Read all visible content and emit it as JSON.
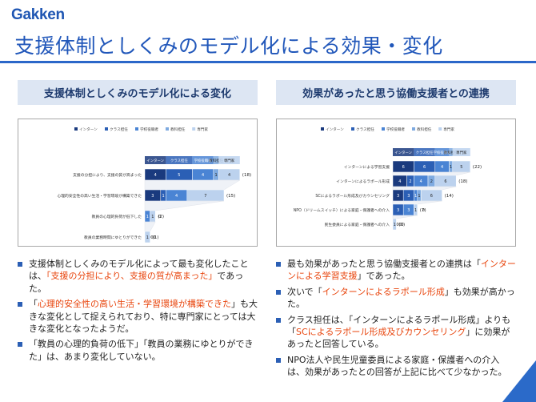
{
  "logo": "Gakken",
  "title": "支援体制としくみのモデル化による効果・変化",
  "colors": {
    "intern": "#1a3a7e",
    "class": "#2b5fb5",
    "admin": "#4a84d4",
    "subject": "#7eaae0",
    "expert": "#bcd2ee",
    "highlight": "#e8450d",
    "accent": "#2b6ac9"
  },
  "legend": [
    "インターン",
    "クラス担任",
    "学校役職者",
    "教科担任",
    "専門家"
  ],
  "left": {
    "header": "支援体制としくみのモデル化による変化",
    "chart_data": {
      "type": "bar",
      "stacked": true,
      "orientation": "horizontal",
      "categories": [
        "支援の分担により、支援の質が高まった",
        "心理的安全性の高い生活・学習環境が構築できた",
        "教員の心理的負荷が低下した",
        "教員の業務時間にゆとりができた"
      ],
      "series": [
        {
          "name": "インターン",
          "values": [
            4,
            3,
            0,
            0
          ]
        },
        {
          "name": "クラス担任",
          "values": [
            5,
            1,
            0,
            0
          ]
        },
        {
          "name": "学校役職者",
          "values": [
            4,
            4,
            1,
            0
          ]
        },
        {
          "name": "教科担任",
          "values": [
            1,
            0,
            0,
            0
          ]
        },
        {
          "name": "専門家",
          "values": [
            4,
            7,
            1,
            1
          ]
        }
      ],
      "totals": [
        "(18)",
        "(15)",
        "(2)",
        "(1)"
      ],
      "value_labels": [
        [
          "4",
          "5",
          "4",
          "1",
          "4"
        ],
        [
          "3",
          "1",
          "4",
          "",
          "7"
        ],
        [
          "0",
          "0",
          "1",
          "0",
          "1"
        ],
        [
          "0",
          "0",
          "0",
          "0",
          "1"
        ]
      ]
    },
    "bullets": [
      [
        {
          "t": "支援体制としくみのモデル化によって最も変化したことは、",
          "h": false
        },
        {
          "t": "「支援の分担により、支援の質が高まった」",
          "h": true
        },
        {
          "t": "であった。",
          "h": false
        }
      ],
      [
        {
          "t": "「",
          "h": false
        },
        {
          "t": "心理的安全性の高い生活・学習環境が構築できた",
          "h": true
        },
        {
          "t": "」も大きな変化として捉えられており、特に専門家にとっては大きな変化となったようだ。",
          "h": false
        }
      ],
      [
        {
          "t": "「教員の心理的負荷の低下」「教員の業務にゆとりができた」は、あまり変化していない。",
          "h": false
        }
      ]
    ]
  },
  "right": {
    "header": "効果があったと思う協働支援者との連携",
    "chart_data": {
      "type": "bar",
      "stacked": true,
      "orientation": "horizontal",
      "categories": [
        "インターンによる学習支援",
        "インターンによるラポール形成",
        "SCによるラポール形成及びカウンセリング",
        "NPO（ドリームスイッチ）による家庭・保護者への介入",
        "民生委員による家庭・保護者への介入"
      ],
      "series": [
        {
          "name": "インターン",
          "values": [
            6,
            4,
            3,
            0,
            0
          ]
        },
        {
          "name": "クラス担任",
          "values": [
            6,
            2,
            3,
            3,
            0
          ]
        },
        {
          "name": "学校役職者",
          "values": [
            4,
            4,
            1,
            3,
            0
          ]
        },
        {
          "name": "教科担任",
          "values": [
            1,
            2,
            1,
            0,
            0
          ]
        },
        {
          "name": "専門家",
          "values": [
            5,
            6,
            6,
            1,
            1
          ]
        }
      ],
      "totals": [
        "(22)",
        "(18)",
        "(14)",
        "(7)",
        "(1)"
      ],
      "value_labels": [
        [
          "6",
          "6",
          "4",
          "1",
          "5"
        ],
        [
          "4",
          "2",
          "4",
          "2",
          "6"
        ],
        [
          "3",
          "3",
          "1",
          "1",
          "6"
        ],
        [
          "0",
          "3",
          "3",
          "0",
          "1"
        ],
        [
          "0",
          "0",
          "0",
          "0",
          "1"
        ]
      ]
    },
    "bullets": [
      [
        {
          "t": "最も効果があったと思う協働支援者との連携は「",
          "h": false
        },
        {
          "t": "インターンによる学習支援",
          "h": true
        },
        {
          "t": "」であった。",
          "h": false
        }
      ],
      [
        {
          "t": "次いで「",
          "h": false
        },
        {
          "t": "インターンによるラポール形成",
          "h": true
        },
        {
          "t": "」も効果が高かった。",
          "h": false
        }
      ],
      [
        {
          "t": "クラス担任は、「インターンによるラポール形成」よりも「",
          "h": false
        },
        {
          "t": "SCによるラポール形成及びカウンセリング",
          "h": true
        },
        {
          "t": "」に効果があったと回答している。",
          "h": false
        }
      ],
      [
        {
          "t": "NPO法人や民生児童委員による家庭・保護者への介入は、効果があったとの回答が上記に比べて少なかった。",
          "h": false
        }
      ]
    ]
  }
}
